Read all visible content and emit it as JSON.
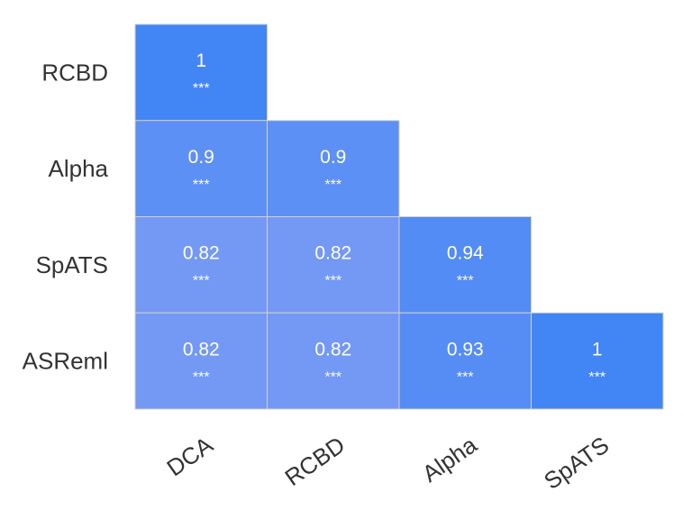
{
  "chart_data": {
    "type": "heatmap",
    "rows": [
      "RCBD",
      "Alpha",
      "SpATS",
      "ASReml"
    ],
    "columns": [
      "DCA",
      "RCBD",
      "Alpha",
      "SpATS"
    ],
    "cells": [
      {
        "row": "RCBD",
        "col": "DCA",
        "value": "1",
        "sig": "***"
      },
      {
        "row": "Alpha",
        "col": "DCA",
        "value": "0.9",
        "sig": "***"
      },
      {
        "row": "Alpha",
        "col": "RCBD",
        "value": "0.9",
        "sig": "***"
      },
      {
        "row": "SpATS",
        "col": "DCA",
        "value": "0.82",
        "sig": "***"
      },
      {
        "row": "SpATS",
        "col": "RCBD",
        "value": "0.82",
        "sig": "***"
      },
      {
        "row": "SpATS",
        "col": "Alpha",
        "value": "0.94",
        "sig": "***"
      },
      {
        "row": "ASReml",
        "col": "DCA",
        "value": "0.82",
        "sig": "***"
      },
      {
        "row": "ASReml",
        "col": "RCBD",
        "value": "0.82",
        "sig": "***"
      },
      {
        "row": "ASReml",
        "col": "Alpha",
        "value": "0.93",
        "sig": "***"
      },
      {
        "row": "ASReml",
        "col": "SpATS",
        "value": "1",
        "sig": "***"
      }
    ],
    "color_high": "#4285f4",
    "color_low": "#7399f4",
    "value_range": [
      0.82,
      1
    ],
    "text_color": "#ffffff",
    "label_color": "#333333",
    "grid_line_color": "#d0d0d0",
    "xlabel": "",
    "ylabel": "",
    "title": "",
    "legend": "none"
  }
}
